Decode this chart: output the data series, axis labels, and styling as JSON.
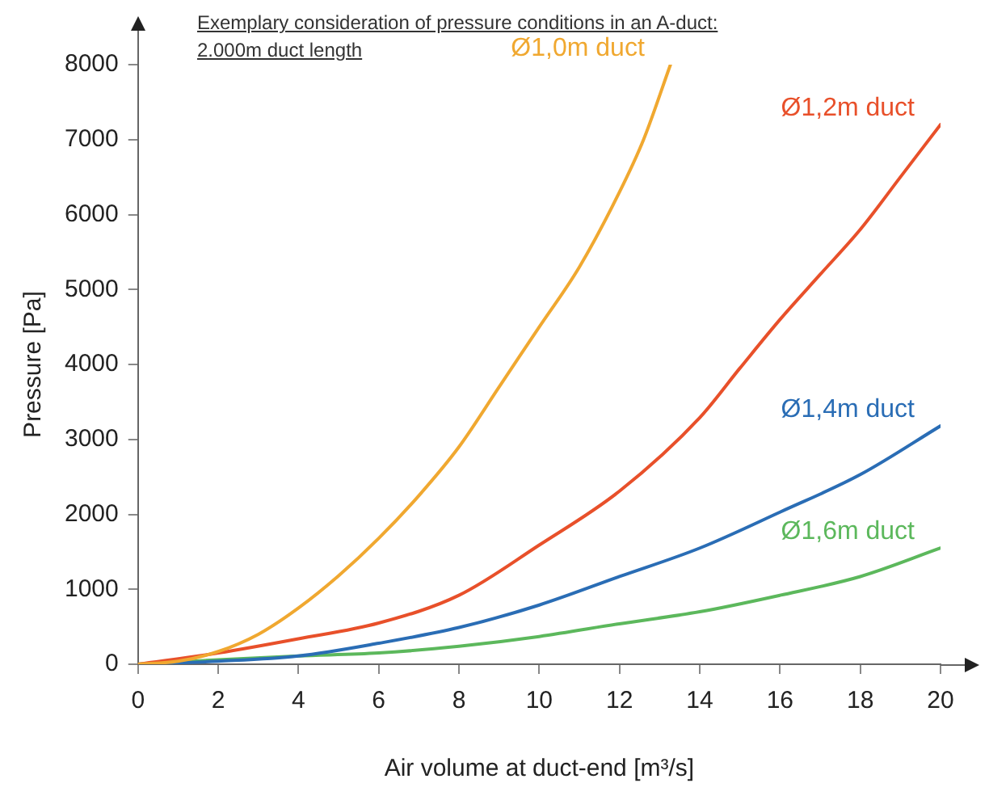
{
  "chart_data": {
    "type": "line",
    "title": "Exemplary consideration of pressure conditions in an A-duct: 2.000m duct length",
    "xlabel": "Air volume at duct-end [m³/s]",
    "ylabel": "Pressure [Pa]",
    "xlim": [
      0,
      20
    ],
    "xticks": [
      0,
      2,
      4,
      6,
      8,
      10,
      12,
      14,
      16,
      18,
      20
    ],
    "ylim": [
      0,
      8000
    ],
    "yticks": [
      0,
      1000,
      2000,
      3000,
      4000,
      5000,
      6000,
      7000,
      8000
    ],
    "grid": false,
    "legend": false,
    "marker": "none",
    "line_style": "solid",
    "series": [
      {
        "name": "Ø1,0m duct",
        "color": "#f0a830",
        "x": [
          0,
          1,
          2,
          3,
          4,
          5,
          6,
          7,
          8,
          9,
          10,
          11,
          12,
          12.6,
          13.27
        ],
        "values": [
          0,
          40,
          170,
          400,
          750,
          1180,
          1680,
          2250,
          2900,
          3700,
          4500,
          5300,
          6300,
          7000,
          8000
        ]
      },
      {
        "name": "Ø1,2m duct",
        "color": "#e8502a",
        "x": [
          0,
          2,
          4,
          6,
          8,
          10,
          12,
          14,
          15,
          16,
          17,
          18,
          19,
          20
        ],
        "values": [
          0,
          150,
          340,
          550,
          920,
          1590,
          2310,
          3290,
          3950,
          4600,
          5200,
          5800,
          6500,
          7200
        ]
      },
      {
        "name": "Ø1,4m duct",
        "color": "#2a6db5",
        "x": [
          0,
          2,
          4,
          6,
          8,
          10,
          12,
          14,
          16,
          18,
          20
        ],
        "values": [
          0,
          40,
          110,
          280,
          490,
          790,
          1170,
          1550,
          2030,
          2530,
          3180
        ]
      },
      {
        "name": "Ø1,6m duct",
        "color": "#5cb85c",
        "x": [
          0,
          2,
          4,
          6,
          8,
          10,
          12,
          14,
          16,
          18,
          20
        ],
        "values": [
          0,
          60,
          110,
          150,
          240,
          370,
          540,
          700,
          920,
          1170,
          1550
        ]
      }
    ]
  }
}
